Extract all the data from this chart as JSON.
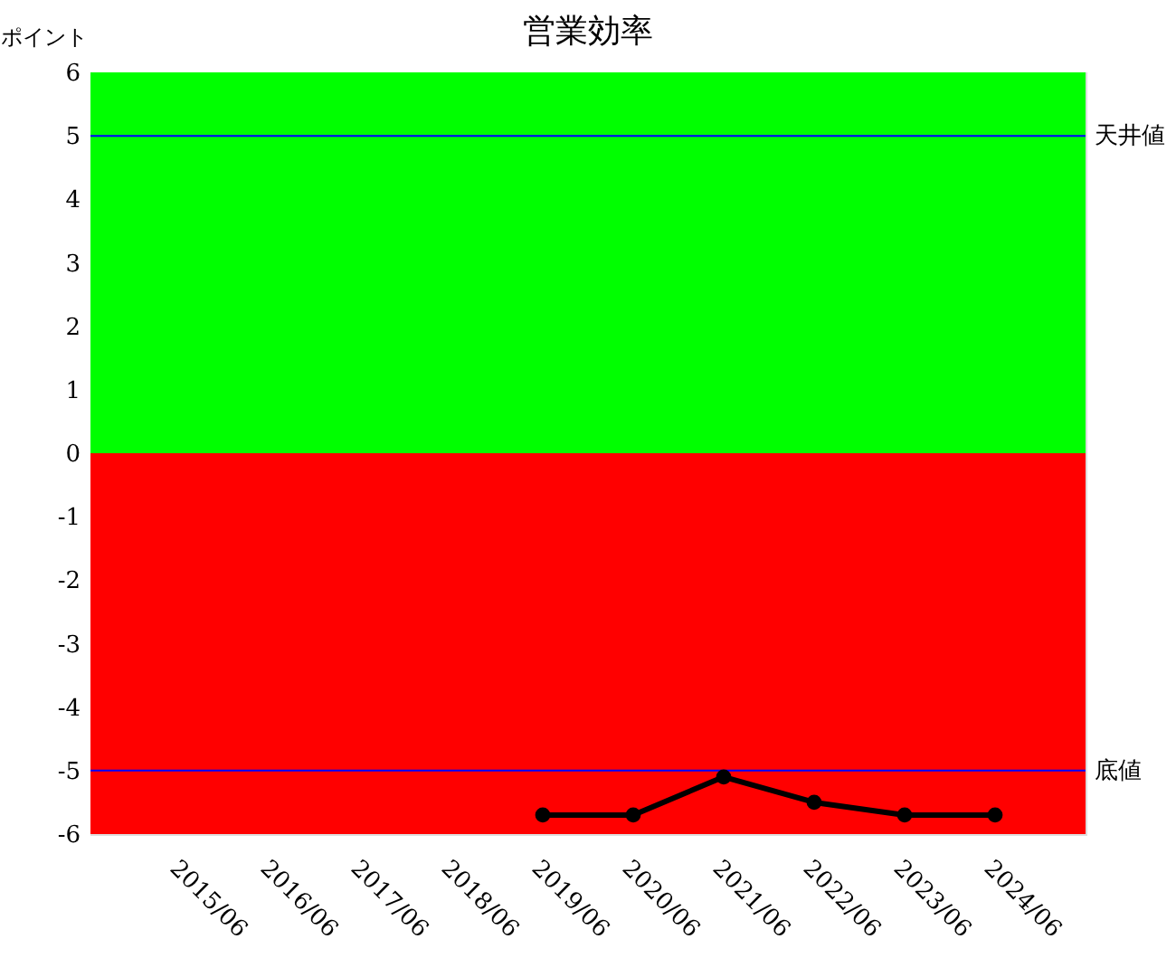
{
  "chart_data": {
    "type": "line",
    "title": "営業効率",
    "ylabel": "ポイント",
    "categories": [
      "2015/06",
      "2016/06",
      "2017/06",
      "2018/06",
      "2019/06",
      "2020/06",
      "2021/06",
      "2022/06",
      "2023/06",
      "2024/06"
    ],
    "series": [
      {
        "color": "#000000",
        "values": [
          null,
          null,
          null,
          null,
          -5.7,
          -5.7,
          -5.1,
          -5.5,
          -5.7,
          -5.7
        ]
      }
    ],
    "ylim": [
      -6,
      6
    ],
    "yticks": [
      -6,
      -5,
      -4,
      -3,
      -2,
      -1,
      0,
      1,
      2,
      3,
      4,
      5,
      6
    ],
    "bands": [
      {
        "axis": "y",
        "from": 0,
        "to": 6,
        "color": "#00ff00"
      },
      {
        "axis": "y",
        "from": -6,
        "to": 0,
        "color": "#ff0000"
      }
    ],
    "ref_lines": [
      {
        "axis": "y",
        "value": 5,
        "label": "天井値",
        "color": "#0000ff"
      },
      {
        "axis": "y",
        "value": -5,
        "label": "底値",
        "color": "#0000ff"
      }
    ],
    "marker": "circle",
    "line_style": "solid"
  }
}
